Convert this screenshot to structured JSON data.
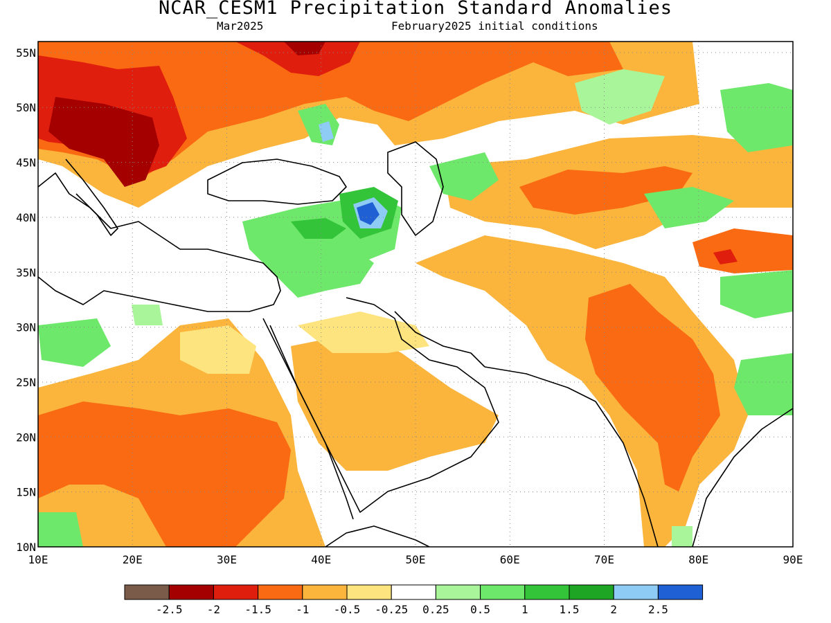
{
  "header": {
    "title": "NCAR_CESM1 Precipitation Standard Anomalies",
    "period": "Mar2025",
    "initial_conditions": "February2025 initial conditions"
  },
  "map": {
    "lon_range": [
      10,
      90
    ],
    "lat_range": [
      10,
      56
    ],
    "lat_ticks": [
      {
        "value": 55,
        "label": "55N"
      },
      {
        "value": 50,
        "label": "50N"
      },
      {
        "value": 45,
        "label": "45N"
      },
      {
        "value": 40,
        "label": "40N"
      },
      {
        "value": 35,
        "label": "35N"
      },
      {
        "value": 30,
        "label": "30N"
      },
      {
        "value": 25,
        "label": "25N"
      },
      {
        "value": 20,
        "label": "20N"
      },
      {
        "value": 15,
        "label": "15N"
      },
      {
        "value": 10,
        "label": "10N"
      }
    ],
    "lon_ticks": [
      {
        "value": 10,
        "label": "10E"
      },
      {
        "value": 20,
        "label": "20E"
      },
      {
        "value": 30,
        "label": "30E"
      },
      {
        "value": 40,
        "label": "40E"
      },
      {
        "value": 50,
        "label": "50E"
      },
      {
        "value": 60,
        "label": "60E"
      },
      {
        "value": 70,
        "label": "70E"
      },
      {
        "value": 80,
        "label": "80E"
      },
      {
        "value": 90,
        "label": "90E"
      }
    ],
    "grid": true
  },
  "legend": {
    "colors": [
      "#7a5a48",
      "#a50000",
      "#e01e0e",
      "#fa6a12",
      "#fbb43c",
      "#fde47e",
      "#ffffff",
      "#a8f59a",
      "#6de86a",
      "#34c43a",
      "#1ea524",
      "#8ecbf5",
      "#1f60d4"
    ],
    "labels": [
      "-2.5",
      "-2",
      "-1.5",
      "-1",
      "-0.5",
      "-0.25",
      "0.25",
      "0.5",
      "1",
      "1.5",
      "2",
      "2.5"
    ]
  }
}
